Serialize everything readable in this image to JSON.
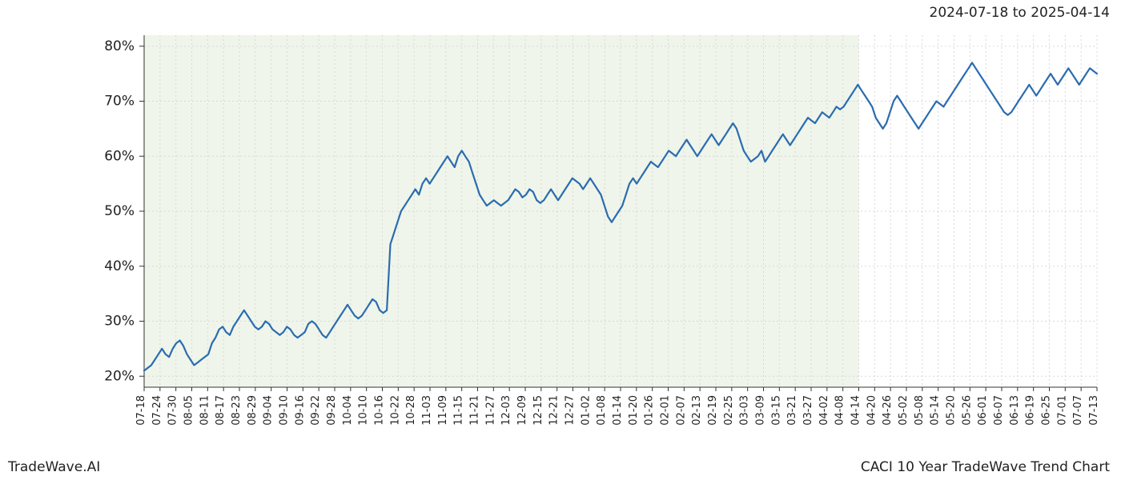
{
  "header": {
    "date_range": "2024-07-18 to 2025-04-14"
  },
  "footer": {
    "brand": "TradeWave.AI",
    "title": "CACI 10 Year TradeWave Trend Chart"
  },
  "chart": {
    "type": "line",
    "background_color": "#ffffff",
    "grid_color": "#d9d9d9",
    "grid_dash": "2,3",
    "axis_border_color": "#333333",
    "highlight_band": {
      "fill": "#e1edd8",
      "opacity": 0.55,
      "x_start": "07-18",
      "x_end": "04-14"
    },
    "y_axis": {
      "min": 18,
      "max": 82,
      "ticks": [
        20,
        30,
        40,
        50,
        60,
        70,
        80
      ],
      "tick_labels": [
        "20%",
        "30%",
        "40%",
        "50%",
        "60%",
        "70%",
        "80%"
      ],
      "label_fontsize": 17
    },
    "x_axis": {
      "ticks": [
        "07-18",
        "07-24",
        "07-30",
        "08-05",
        "08-11",
        "08-17",
        "08-23",
        "08-29",
        "09-04",
        "09-10",
        "09-16",
        "09-22",
        "09-28",
        "10-04",
        "10-10",
        "10-16",
        "10-22",
        "10-28",
        "11-03",
        "11-09",
        "11-15",
        "11-21",
        "11-27",
        "12-03",
        "12-09",
        "12-15",
        "12-21",
        "12-27",
        "01-02",
        "01-08",
        "01-14",
        "01-20",
        "01-26",
        "02-01",
        "02-07",
        "02-13",
        "02-19",
        "02-25",
        "03-03",
        "03-09",
        "03-15",
        "03-21",
        "03-27",
        "04-02",
        "04-08",
        "04-14",
        "04-20",
        "04-26",
        "05-02",
        "05-08",
        "05-14",
        "05-20",
        "05-26",
        "06-01",
        "06-07",
        "06-13",
        "06-19",
        "06-25",
        "07-01",
        "07-07",
        "07-13"
      ],
      "label_fontsize": 13,
      "rotation": 90
    },
    "line_style": {
      "color": "#2b6cb0",
      "width": 2.2
    },
    "data": [
      21,
      21.5,
      22,
      23,
      24,
      25,
      24,
      23.5,
      25,
      26,
      26.5,
      25.5,
      24,
      23,
      22,
      22.5,
      23,
      23.5,
      24,
      26,
      27,
      28.5,
      29,
      28,
      27.5,
      29,
      30,
      31,
      32,
      31,
      30,
      29,
      28.5,
      29,
      30,
      29.5,
      28.5,
      28,
      27.5,
      28,
      29,
      28.5,
      27.5,
      27,
      27.5,
      28,
      29.5,
      30,
      29.5,
      28.5,
      27.5,
      27,
      28,
      29,
      30,
      31,
      32,
      33,
      32,
      31,
      30.5,
      31,
      32,
      33,
      34,
      33.5,
      32,
      31.5,
      32,
      44,
      46,
      48,
      50,
      51,
      52,
      53,
      54,
      53,
      55,
      56,
      55,
      56,
      57,
      58,
      59,
      60,
      59,
      58,
      60,
      61,
      60,
      59,
      57,
      55,
      53,
      52,
      51,
      51.5,
      52,
      51.5,
      51,
      51.5,
      52,
      53,
      54,
      53.5,
      52.5,
      53,
      54,
      53.5,
      52,
      51.5,
      52,
      53,
      54,
      53,
      52,
      53,
      54,
      55,
      56,
      55.5,
      55,
      54,
      55,
      56,
      55,
      54,
      53,
      51,
      49,
      48,
      49,
      50,
      51,
      53,
      55,
      56,
      55,
      56,
      57,
      58,
      59,
      58.5,
      58,
      59,
      60,
      61,
      60.5,
      60,
      61,
      62,
      63,
      62,
      61,
      60,
      61,
      62,
      63,
      64,
      63,
      62,
      63,
      64,
      65,
      66,
      65,
      63,
      61,
      60,
      59,
      59.5,
      60,
      61,
      59,
      60,
      61,
      62,
      63,
      64,
      63,
      62,
      63,
      64,
      65,
      66,
      67,
      66.5,
      66,
      67,
      68,
      67.5,
      67,
      68,
      69,
      68.5,
      69,
      70,
      71,
      72,
      73,
      72,
      71,
      70,
      69,
      67,
      66,
      65,
      66,
      68,
      70,
      71,
      70,
      69,
      68,
      67,
      66,
      65,
      66,
      67,
      68,
      69,
      70,
      69.5,
      69,
      70,
      71,
      72,
      73,
      74,
      75,
      76,
      77,
      76,
      75,
      74,
      73,
      72,
      71,
      70,
      69,
      68,
      67.5,
      68,
      69,
      70,
      71,
      72,
      73,
      72,
      71,
      72,
      73,
      74,
      75,
      74,
      73,
      74,
      75,
      76,
      75,
      74,
      73,
      74,
      75,
      76,
      75.5,
      75
    ]
  }
}
